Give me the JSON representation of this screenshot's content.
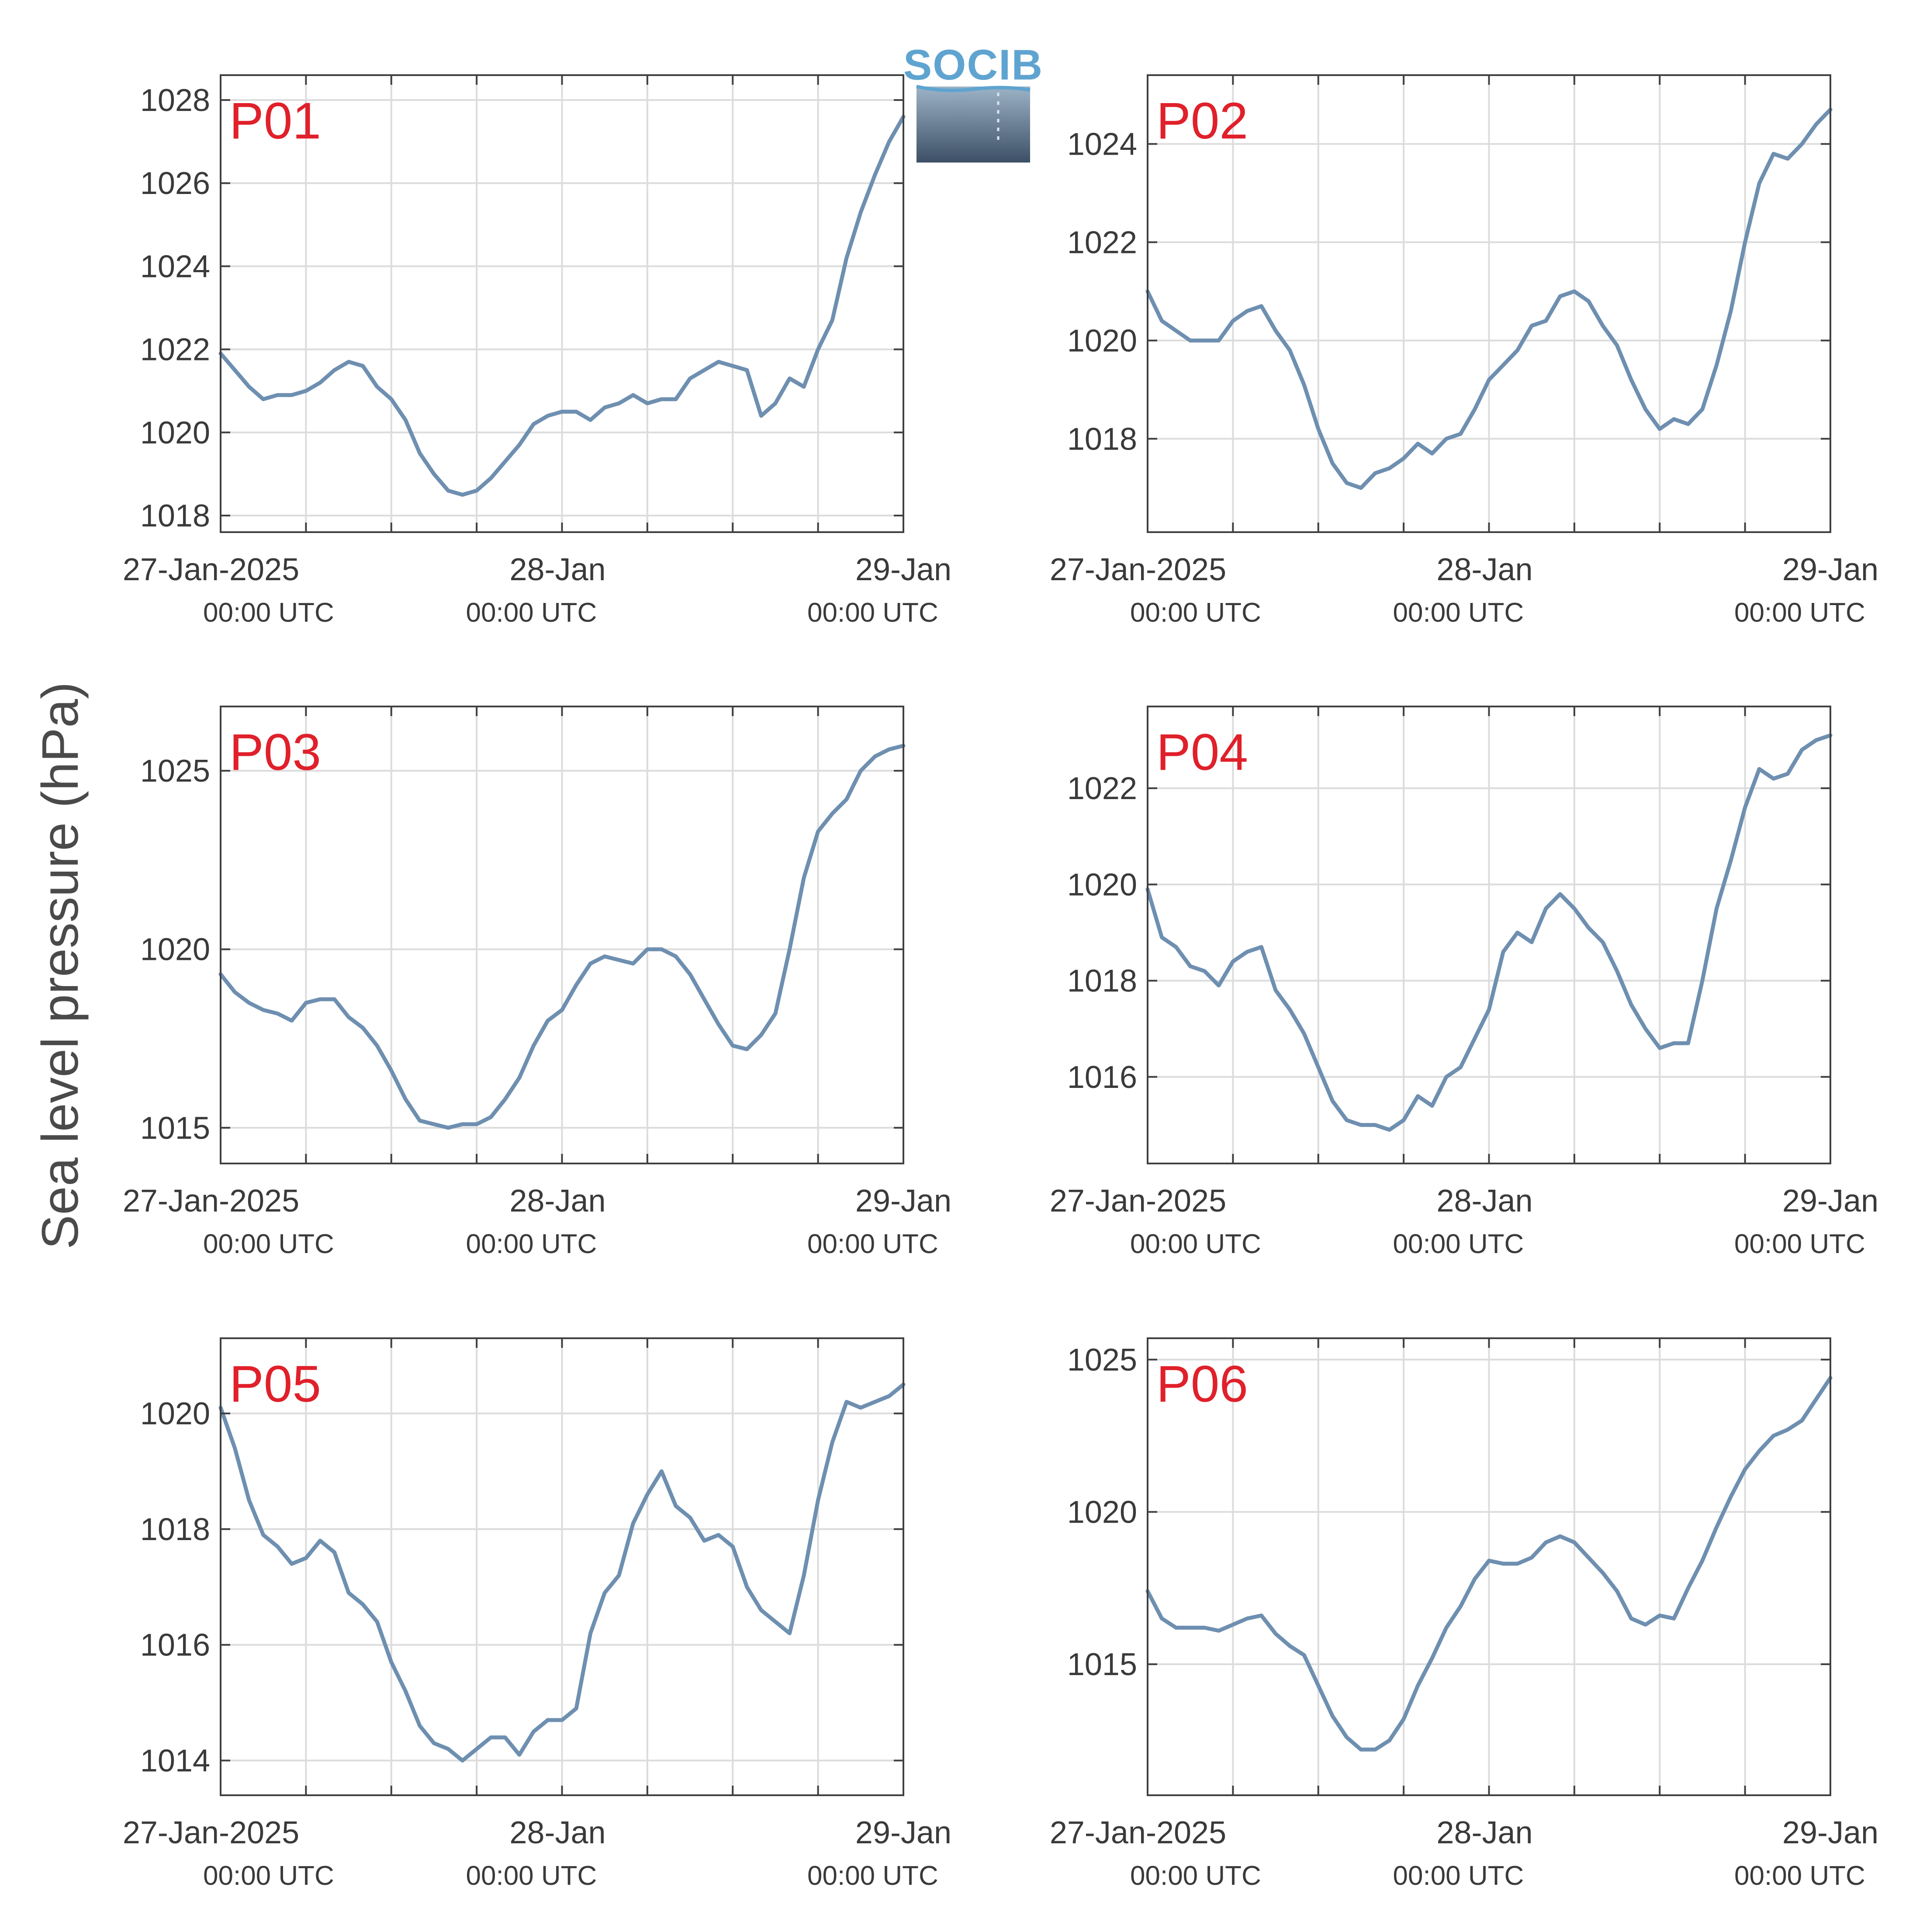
{
  "figure": {
    "ylabel": "Sea level pressure (hPa)",
    "logo_text": "SOCIB",
    "line_color": "#6e8fb0",
    "label_color": "#e0202a",
    "axis_color": "#404040",
    "grid_color": "#dcdcdc"
  },
  "x_ticks": [
    {
      "line1": "27-Jan-2025",
      "line2": "00:00 UTC"
    },
    {
      "line1": "28-Jan",
      "line2": "00:00 UTC"
    },
    {
      "line1": "29-Jan",
      "line2": "00:00 UTC"
    }
  ],
  "chart_data": [
    {
      "type": "line",
      "label": "P01",
      "xlim": [
        0,
        48
      ],
      "ylim": [
        1017.6,
        1028.6
      ],
      "yticks": [
        1018,
        1020,
        1022,
        1024,
        1026,
        1028
      ],
      "series": [
        {
          "x": [
            0,
            1,
            2,
            3,
            4,
            5,
            6,
            7,
            8,
            9,
            10,
            11,
            12,
            13,
            14,
            15,
            16,
            17,
            18,
            19,
            20,
            21,
            22,
            23,
            24,
            25,
            26,
            27,
            28,
            29,
            30,
            31,
            32,
            33,
            34,
            35,
            36,
            37,
            38,
            39,
            40,
            41,
            42,
            43,
            44,
            45,
            46,
            47,
            48
          ],
          "y": [
            1021.9,
            1021.5,
            1021.1,
            1020.8,
            1020.9,
            1020.9,
            1021.0,
            1021.2,
            1021.5,
            1021.7,
            1021.6,
            1021.1,
            1020.8,
            1020.3,
            1019.5,
            1019.0,
            1018.6,
            1018.5,
            1018.6,
            1018.9,
            1019.3,
            1019.7,
            1020.2,
            1020.4,
            1020.5,
            1020.5,
            1020.3,
            1020.6,
            1020.7,
            1020.9,
            1020.7,
            1020.8,
            1020.8,
            1021.3,
            1021.5,
            1021.7,
            1021.6,
            1021.5,
            1020.4,
            1020.7,
            1021.3,
            1021.1,
            1022.0,
            1022.7,
            1024.2,
            1025.3,
            1026.2,
            1027.0,
            1027.6
          ]
        }
      ]
    },
    {
      "type": "line",
      "label": "P02",
      "xlim": [
        0,
        48
      ],
      "ylim": [
        1016.1,
        1025.4
      ],
      "yticks": [
        1018,
        1020,
        1022,
        1024
      ],
      "series": [
        {
          "x": [
            0,
            1,
            2,
            3,
            4,
            5,
            6,
            7,
            8,
            9,
            10,
            11,
            12,
            13,
            14,
            15,
            16,
            17,
            18,
            19,
            20,
            21,
            22,
            23,
            24,
            25,
            26,
            27,
            28,
            29,
            30,
            31,
            32,
            33,
            34,
            35,
            36,
            37,
            38,
            39,
            40,
            41,
            42,
            43,
            44,
            45,
            46,
            47,
            48
          ],
          "y": [
            1021.0,
            1020.4,
            1020.2,
            1020.0,
            1020.0,
            1020.0,
            1020.4,
            1020.6,
            1020.7,
            1020.2,
            1019.8,
            1019.1,
            1018.2,
            1017.5,
            1017.1,
            1017.0,
            1017.3,
            1017.4,
            1017.6,
            1017.9,
            1017.7,
            1018.0,
            1018.1,
            1018.6,
            1019.2,
            1019.5,
            1019.8,
            1020.3,
            1020.4,
            1020.9,
            1021.0,
            1020.8,
            1020.3,
            1019.9,
            1019.2,
            1018.6,
            1018.2,
            1018.4,
            1018.3,
            1018.6,
            1019.5,
            1020.6,
            1022.0,
            1023.2,
            1023.8,
            1023.7,
            1024.0,
            1024.4,
            1024.7
          ]
        }
      ]
    },
    {
      "type": "line",
      "label": "P03",
      "xlim": [
        0,
        48
      ],
      "ylim": [
        1014.0,
        1026.8
      ],
      "yticks": [
        1015,
        1020,
        1025
      ],
      "series": [
        {
          "x": [
            0,
            1,
            2,
            3,
            4,
            5,
            6,
            7,
            8,
            9,
            10,
            11,
            12,
            13,
            14,
            15,
            16,
            17,
            18,
            19,
            20,
            21,
            22,
            23,
            24,
            25,
            26,
            27,
            28,
            29,
            30,
            31,
            32,
            33,
            34,
            35,
            36,
            37,
            38,
            39,
            40,
            41,
            42,
            43,
            44,
            45,
            46,
            47,
            48
          ],
          "y": [
            1019.3,
            1018.8,
            1018.5,
            1018.3,
            1018.2,
            1018.0,
            1018.5,
            1018.6,
            1018.6,
            1018.1,
            1017.8,
            1017.3,
            1016.6,
            1015.8,
            1015.2,
            1015.1,
            1015.0,
            1015.1,
            1015.1,
            1015.3,
            1015.8,
            1016.4,
            1017.3,
            1018.0,
            1018.3,
            1019.0,
            1019.6,
            1019.8,
            1019.7,
            1019.6,
            1020.0,
            1020.0,
            1019.8,
            1019.3,
            1018.6,
            1017.9,
            1017.3,
            1017.2,
            1017.6,
            1018.2,
            1020.0,
            1022.0,
            1023.3,
            1023.8,
            1024.2,
            1025.0,
            1025.4,
            1025.6,
            1025.7
          ]
        }
      ]
    },
    {
      "type": "line",
      "label": "P04",
      "xlim": [
        0,
        48
      ],
      "ylim": [
        1014.2,
        1023.7
      ],
      "yticks": [
        1016,
        1018,
        1020,
        1022
      ],
      "series": [
        {
          "x": [
            0,
            1,
            2,
            3,
            4,
            5,
            6,
            7,
            8,
            9,
            10,
            11,
            12,
            13,
            14,
            15,
            16,
            17,
            18,
            19,
            20,
            21,
            22,
            23,
            24,
            25,
            26,
            27,
            28,
            29,
            30,
            31,
            32,
            33,
            34,
            35,
            36,
            37,
            38,
            39,
            40,
            41,
            42,
            43,
            44,
            45,
            46,
            47,
            48
          ],
          "y": [
            1019.9,
            1018.9,
            1018.7,
            1018.3,
            1018.2,
            1017.9,
            1018.4,
            1018.6,
            1018.7,
            1017.8,
            1017.4,
            1016.9,
            1016.2,
            1015.5,
            1015.1,
            1015.0,
            1015.0,
            1014.9,
            1015.1,
            1015.6,
            1015.4,
            1016.0,
            1016.2,
            1016.8,
            1017.4,
            1018.6,
            1019.0,
            1018.8,
            1019.5,
            1019.8,
            1019.5,
            1019.1,
            1018.8,
            1018.2,
            1017.5,
            1017.0,
            1016.6,
            1016.7,
            1016.7,
            1018.0,
            1019.5,
            1020.5,
            1021.6,
            1022.4,
            1022.2,
            1022.3,
            1022.8,
            1023.0,
            1023.1
          ]
        }
      ]
    },
    {
      "type": "line",
      "label": "P05",
      "xlim": [
        0,
        48
      ],
      "ylim": [
        1013.4,
        1021.3
      ],
      "yticks": [
        1014,
        1016,
        1018,
        1020
      ],
      "series": [
        {
          "x": [
            0,
            1,
            2,
            3,
            4,
            5,
            6,
            7,
            8,
            9,
            10,
            11,
            12,
            13,
            14,
            15,
            16,
            17,
            18,
            19,
            20,
            21,
            22,
            23,
            24,
            25,
            26,
            27,
            28,
            29,
            30,
            31,
            32,
            33,
            34,
            35,
            36,
            37,
            38,
            39,
            40,
            41,
            42,
            43,
            44,
            45,
            46,
            47,
            48
          ],
          "y": [
            1020.1,
            1019.4,
            1018.5,
            1017.9,
            1017.7,
            1017.4,
            1017.5,
            1017.8,
            1017.6,
            1016.9,
            1016.7,
            1016.4,
            1015.7,
            1015.2,
            1014.6,
            1014.3,
            1014.2,
            1014.0,
            1014.2,
            1014.4,
            1014.4,
            1014.1,
            1014.5,
            1014.7,
            1014.7,
            1014.9,
            1016.2,
            1016.9,
            1017.2,
            1018.1,
            1018.6,
            1019.0,
            1018.4,
            1018.2,
            1017.8,
            1017.9,
            1017.7,
            1017.0,
            1016.6,
            1016.4,
            1016.2,
            1017.2,
            1018.5,
            1019.5,
            1020.2,
            1020.1,
            1020.2,
            1020.3,
            1020.5
          ]
        }
      ]
    },
    {
      "type": "line",
      "label": "P06",
      "xlim": [
        0,
        48
      ],
      "ylim": [
        1010.7,
        1025.7
      ],
      "yticks": [
        1015,
        1020,
        1025
      ],
      "series": [
        {
          "x": [
            0,
            1,
            2,
            3,
            4,
            5,
            6,
            7,
            8,
            9,
            10,
            11,
            12,
            13,
            14,
            15,
            16,
            17,
            18,
            19,
            20,
            21,
            22,
            23,
            24,
            25,
            26,
            27,
            28,
            29,
            30,
            31,
            32,
            33,
            34,
            35,
            36,
            37,
            38,
            39,
            40,
            41,
            42,
            43,
            44,
            45,
            46,
            47,
            48
          ],
          "y": [
            1017.4,
            1016.5,
            1016.2,
            1016.2,
            1016.2,
            1016.1,
            1016.3,
            1016.5,
            1016.6,
            1016.0,
            1015.6,
            1015.3,
            1014.3,
            1013.3,
            1012.6,
            1012.2,
            1012.2,
            1012.5,
            1013.2,
            1014.3,
            1015.2,
            1016.2,
            1016.9,
            1017.8,
            1018.4,
            1018.3,
            1018.3,
            1018.5,
            1019.0,
            1019.2,
            1019.0,
            1018.5,
            1018.0,
            1017.4,
            1016.5,
            1016.3,
            1016.6,
            1016.5,
            1017.5,
            1018.4,
            1019.5,
            1020.5,
            1021.4,
            1022.0,
            1022.5,
            1022.7,
            1023.0,
            1023.7,
            1024.4
          ]
        }
      ]
    }
  ]
}
